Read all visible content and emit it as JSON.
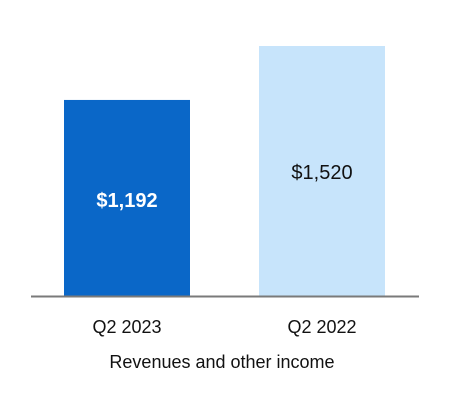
{
  "chart_data": {
    "type": "bar",
    "categories": [
      "Q2 2023",
      "Q2 2022"
    ],
    "values": [
      1192,
      1520
    ],
    "value_labels": [
      "$1,192",
      "$1,520"
    ],
    "xlabel": "Revenues and other income",
    "ylabel": "",
    "ylim": [
      0,
      1520
    ],
    "grid": false,
    "legend": "none",
    "colors": {
      "bars": [
        "#0a67c8",
        "#c7e4fb"
      ],
      "value_label_colors": [
        "#ffffff",
        "#111111"
      ],
      "axis": "#7a7a7a",
      "text": "#111111"
    }
  }
}
